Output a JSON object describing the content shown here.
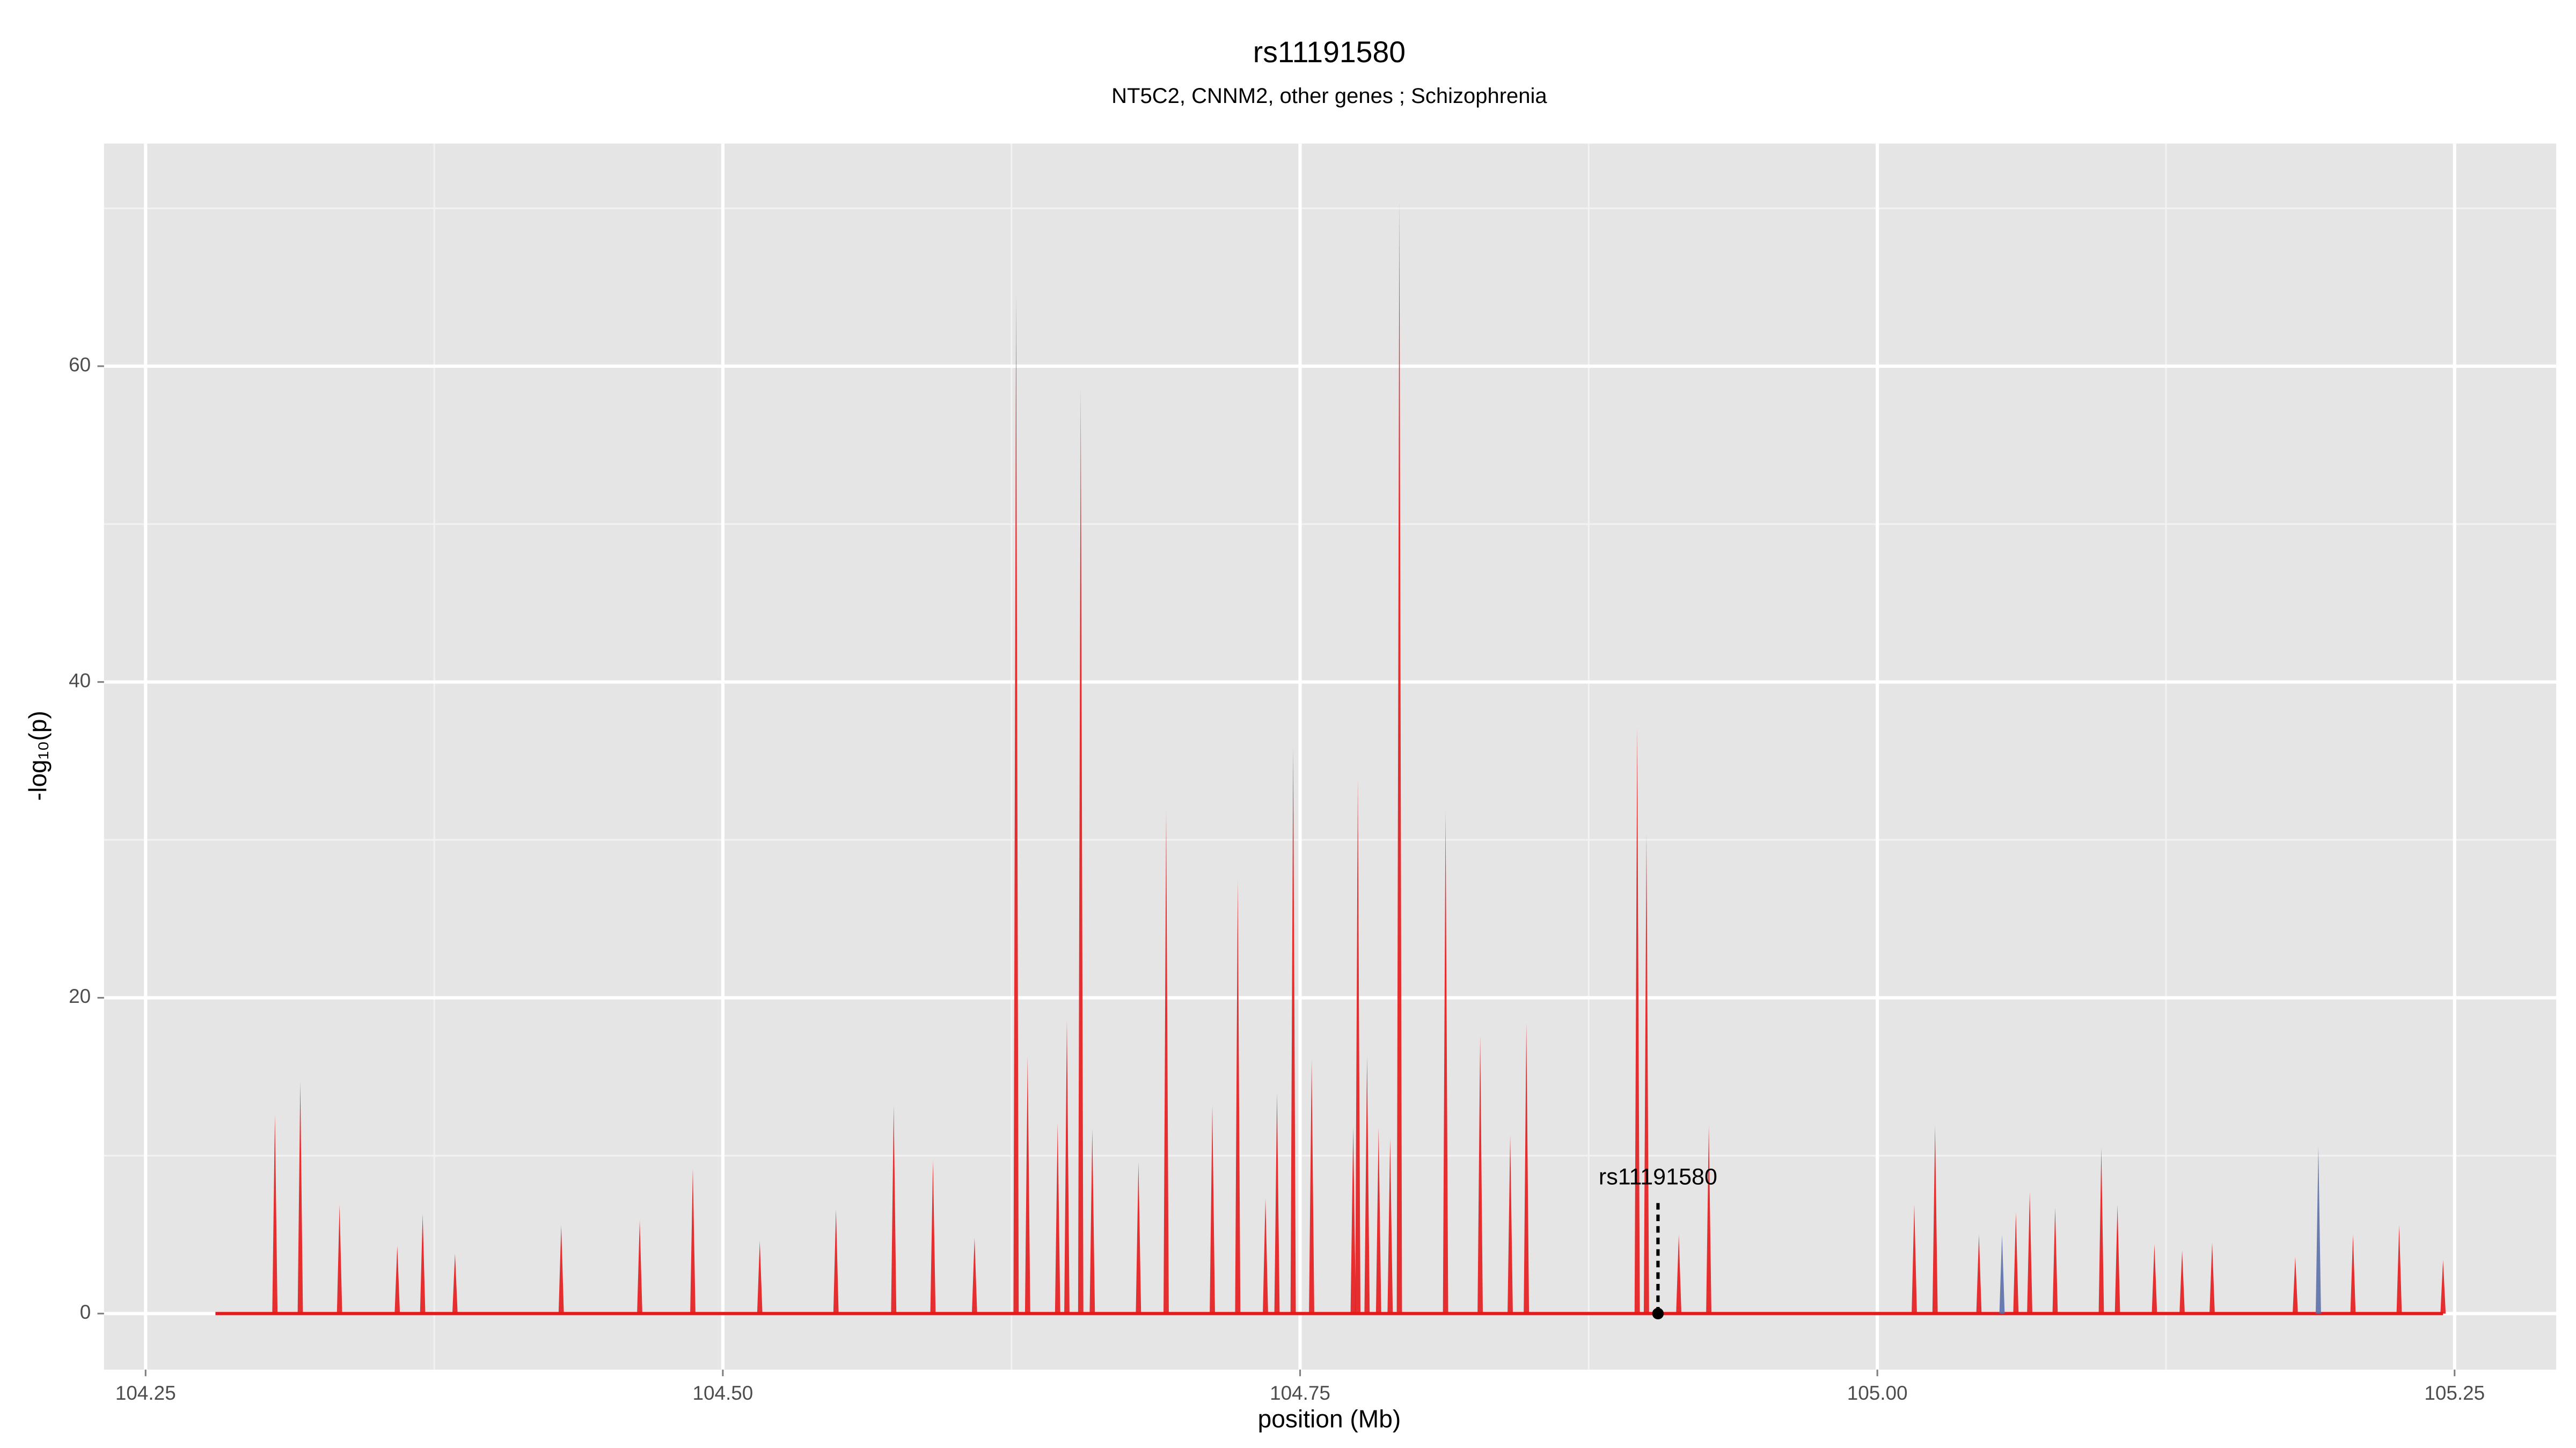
{
  "chart_data": {
    "type": "spike",
    "title": "rs11191580",
    "subtitle": "NT5C2, CNNM2, other genes ; Schizophrenia",
    "x_label": "position (Mb)",
    "y_label": "-log₁₀(p)",
    "xlim": [
      104.232,
      105.294
    ],
    "ylim": [
      -3.55,
      74.1
    ],
    "xticks": [
      {
        "value": 104.25,
        "label": "104.25"
      },
      {
        "value": 104.5,
        "label": "104.50"
      },
      {
        "value": 104.75,
        "label": "104.75"
      },
      {
        "value": 105.0,
        "label": "105.00"
      },
      {
        "value": 105.25,
        "label": "105.25"
      }
    ],
    "yticks": [
      0,
      20,
      40,
      60
    ],
    "x_minor_grid": [
      104.375,
      104.625,
      104.875,
      105.125
    ],
    "y_minor_grid": [
      10,
      30,
      50,
      70
    ],
    "grid": true,
    "series": [
      {
        "name": "red",
        "color": "#e41a1c",
        "x": [
          104.306,
          104.317,
          104.334,
          104.359,
          104.37,
          104.384,
          104.43,
          104.464,
          104.487,
          104.516,
          104.549,
          104.574,
          104.591,
          104.609,
          104.627,
          104.632,
          104.645,
          104.649,
          104.655,
          104.66,
          104.68,
          104.692,
          104.712,
          104.723,
          104.735,
          104.74,
          104.747,
          104.755,
          104.773,
          104.775,
          104.779,
          104.784,
          104.789,
          104.793,
          104.813,
          104.828,
          104.841,
          104.848,
          104.896,
          104.9,
          104.914,
          104.927,
          105.016,
          105.025,
          105.044,
          105.06,
          105.066,
          105.077,
          105.097,
          105.104,
          105.12,
          105.132,
          105.145,
          105.181,
          105.206,
          105.226,
          105.245
        ],
        "values": [
          12.6,
          14.7,
          6.9,
          4.3,
          6.3,
          3.8,
          5.6,
          5.9,
          9.2,
          4.6,
          6.6,
          13.2,
          9.7,
          4.8,
          64.6,
          16.3,
          12.1,
          18.6,
          58.6,
          11.7,
          9.6,
          31.8,
          13.2,
          27.5,
          7.3,
          14.0,
          35.9,
          16.1,
          11.8,
          33.9,
          16.3,
          11.8,
          11.1,
          70.5,
          31.8,
          17.6,
          11.3,
          18.4,
          37.2,
          30.4,
          5.0,
          11.9,
          6.9,
          11.9,
          5.0,
          6.4,
          7.7,
          6.7,
          10.5,
          6.9,
          4.4,
          4.0,
          4.5,
          3.6,
          5.0,
          5.6,
          3.4
        ]
      },
      {
        "name": "blue",
        "color": "#5b6fa8",
        "x": [
          105.054,
          105.191
        ],
        "values": [
          5.0,
          10.6
        ]
      }
    ],
    "annotation": {
      "label": "rs11191580",
      "x": 104.905,
      "y": 0,
      "line_top": 7
    }
  }
}
